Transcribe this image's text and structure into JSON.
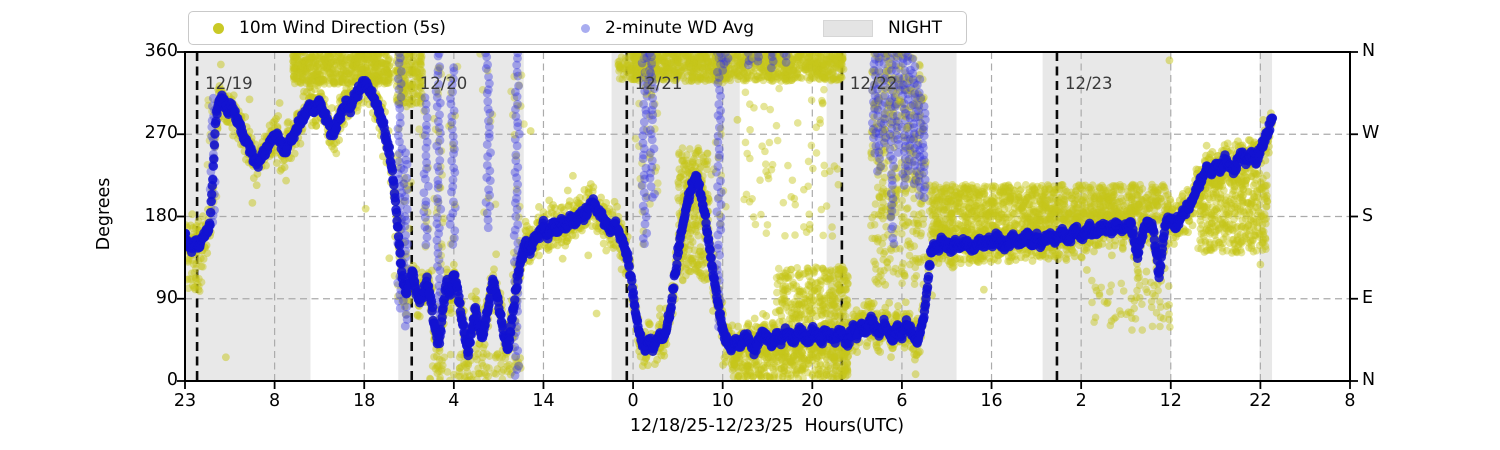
{
  "colors": {
    "yellow": "#c6c61a",
    "blue": "#1212d2",
    "blue_faint": "#3a3ae0",
    "legend_yellow": "#c9c926",
    "legend_blue": "#a9adf0",
    "night": "#e8e8e8",
    "night_patch": "#e4e4e4",
    "grid": "#ababab",
    "date_line": "#0a0a0a",
    "date_text": "#3a3a3a",
    "spine": "#000000"
  },
  "chart_data": {
    "type": "scatter",
    "title": "",
    "xlabel": "12/18/25-12/23/25  Hours(UTC)",
    "ylabel": "Degrees",
    "ylim": [
      0,
      360
    ],
    "x_hours_span": 130,
    "grid": "dashed, horizontal at 90/180/270 and vertical at each x tick",
    "legend_position": "top",
    "legend": [
      {
        "label": "10m Wind Direction (5s)",
        "marker": "dot"
      },
      {
        "label": "2-minute WD Avg",
        "marker": "dot"
      },
      {
        "label": "NIGHT",
        "marker": "patch"
      }
    ],
    "yticks": [
      {
        "deg": 0,
        "left": "0",
        "right": "N"
      },
      {
        "deg": 90,
        "left": "90",
        "right": "E"
      },
      {
        "deg": 180,
        "left": "180",
        "right": "S"
      },
      {
        "deg": 270,
        "left": "270",
        "right": "W"
      },
      {
        "deg": 360,
        "left": "360",
        "right": "N"
      }
    ],
    "xticks": [
      {
        "h": 0,
        "label": "23"
      },
      {
        "h": 10,
        "label": "8"
      },
      {
        "h": 20,
        "label": "18"
      },
      {
        "h": 30,
        "label": "4"
      },
      {
        "h": 40,
        "label": "14"
      },
      {
        "h": 50,
        "label": "0"
      },
      {
        "h": 60,
        "label": "10"
      },
      {
        "h": 70,
        "label": "20"
      },
      {
        "h": 80,
        "label": "6"
      },
      {
        "h": 90,
        "label": "16"
      },
      {
        "h": 100,
        "label": "2"
      },
      {
        "h": 110,
        "label": "12"
      },
      {
        "h": 120,
        "label": "22"
      },
      {
        "h": 130,
        "label": "8"
      }
    ],
    "day_lines": [
      {
        "h": 1.35,
        "label": "12/19"
      },
      {
        "h": 25.3,
        "label": "12/20"
      },
      {
        "h": 49.3,
        "label": "12/21"
      },
      {
        "h": 73.3,
        "label": "12/22"
      },
      {
        "h": 97.3,
        "label": "12/23"
      }
    ],
    "night_bands_hours": [
      [
        0,
        14
      ],
      [
        23.8,
        37.8
      ],
      [
        47.6,
        61.9
      ],
      [
        71.6,
        86.1
      ],
      [
        95.7,
        110
      ],
      [
        119.9,
        121.3
      ]
    ],
    "avg_series": [
      [
        0,
        160
      ],
      [
        0.4,
        150
      ],
      [
        0.8,
        146
      ],
      [
        1.2,
        154
      ],
      [
        1.6,
        150
      ],
      [
        2,
        158
      ],
      [
        2.4,
        164
      ],
      [
        2.8,
        174
      ],
      [
        3.1,
        220
      ],
      [
        3.4,
        285
      ],
      [
        3.7,
        300
      ],
      [
        4,
        310
      ],
      [
        4.4,
        306
      ],
      [
        4.8,
        296
      ],
      [
        5.2,
        301
      ],
      [
        5.6,
        291
      ],
      [
        6,
        281
      ],
      [
        6.4,
        271
      ],
      [
        6.8,
        262
      ],
      [
        7.2,
        255
      ],
      [
        7.6,
        246
      ],
      [
        8,
        238
      ],
      [
        8.4,
        242
      ],
      [
        8.8,
        250
      ],
      [
        9.2,
        256
      ],
      [
        9.6,
        263
      ],
      [
        10,
        270
      ],
      [
        10.4,
        265
      ],
      [
        10.8,
        258
      ],
      [
        11.2,
        252
      ],
      [
        11.6,
        260
      ],
      [
        12,
        268
      ],
      [
        12.4,
        275
      ],
      [
        12.8,
        282
      ],
      [
        13.2,
        290
      ],
      [
        13.6,
        296
      ],
      [
        14,
        302
      ],
      [
        14.4,
        297
      ],
      [
        14.8,
        305
      ],
      [
        15.2,
        300
      ],
      [
        15.6,
        291
      ],
      [
        16,
        280
      ],
      [
        16.4,
        267
      ],
      [
        16.8,
        275
      ],
      [
        17.2,
        288
      ],
      [
        17.6,
        297
      ],
      [
        18,
        305
      ],
      [
        18.4,
        297
      ],
      [
        18.8,
        308
      ],
      [
        19.2,
        315
      ],
      [
        19.6,
        322
      ],
      [
        20,
        328
      ],
      [
        20.4,
        322
      ],
      [
        20.8,
        314
      ],
      [
        21.2,
        307
      ],
      [
        21.6,
        297
      ],
      [
        22,
        285
      ],
      [
        22.4,
        268
      ],
      [
        22.8,
        250
      ],
      [
        23.2,
        224
      ],
      [
        23.6,
        185
      ],
      [
        24,
        140
      ],
      [
        24.3,
        112
      ],
      [
        24.6,
        96
      ],
      [
        25,
        106
      ],
      [
        25.4,
        120
      ],
      [
        25.8,
        100
      ],
      [
        26.2,
        88
      ],
      [
        26.6,
        96
      ],
      [
        27,
        108
      ],
      [
        27.4,
        92
      ],
      [
        27.8,
        62
      ],
      [
        28.1,
        48
      ],
      [
        28.4,
        42
      ],
      [
        28.8,
        78
      ],
      [
        29.2,
        108
      ],
      [
        29.6,
        92
      ],
      [
        30,
        118
      ],
      [
        30.4,
        100
      ],
      [
        30.8,
        72
      ],
      [
        31.2,
        52
      ],
      [
        31.6,
        32
      ],
      [
        32,
        56
      ],
      [
        32.4,
        78
      ],
      [
        32.8,
        60
      ],
      [
        33.2,
        46
      ],
      [
        33.6,
        68
      ],
      [
        34,
        90
      ],
      [
        34.4,
        108
      ],
      [
        34.8,
        94
      ],
      [
        35.2,
        74
      ],
      [
        35.6,
        52
      ],
      [
        36,
        34
      ],
      [
        36.4,
        60
      ],
      [
        36.8,
        92
      ],
      [
        37.2,
        118
      ],
      [
        37.6,
        136
      ],
      [
        38,
        150
      ],
      [
        38.5,
        144
      ],
      [
        39,
        154
      ],
      [
        39.5,
        160
      ],
      [
        40,
        170
      ],
      [
        40.5,
        160
      ],
      [
        41,
        172
      ],
      [
        41.5,
        164
      ],
      [
        42,
        174
      ],
      [
        42.5,
        168
      ],
      [
        43,
        178
      ],
      [
        43.5,
        172
      ],
      [
        44,
        182
      ],
      [
        44.5,
        180
      ],
      [
        45,
        188
      ],
      [
        45.5,
        195
      ],
      [
        46,
        188
      ],
      [
        46.5,
        180
      ],
      [
        47,
        171
      ],
      [
        47.5,
        165
      ],
      [
        48,
        171
      ],
      [
        48.5,
        160
      ],
      [
        49,
        148
      ],
      [
        49.4,
        134
      ],
      [
        49.8,
        110
      ],
      [
        50.2,
        80
      ],
      [
        50.6,
        56
      ],
      [
        51,
        42
      ],
      [
        51.4,
        36
      ],
      [
        51.8,
        46
      ],
      [
        52.2,
        36
      ],
      [
        52.6,
        41
      ],
      [
        53,
        50
      ],
      [
        53.4,
        46
      ],
      [
        53.8,
        60
      ],
      [
        54.2,
        80
      ],
      [
        54.6,
        110
      ],
      [
        55,
        140
      ],
      [
        55.4,
        164
      ],
      [
        55.8,
        184
      ],
      [
        56.2,
        200
      ],
      [
        56.6,
        214
      ],
      [
        57,
        225
      ],
      [
        57.4,
        210
      ],
      [
        57.8,
        190
      ],
      [
        58.2,
        170
      ],
      [
        58.6,
        140
      ],
      [
        59,
        115
      ],
      [
        59.4,
        90
      ],
      [
        59.8,
        66
      ],
      [
        60.2,
        50
      ],
      [
        60.6,
        41
      ],
      [
        61,
        35
      ],
      [
        61.5,
        44
      ],
      [
        62,
        38
      ],
      [
        62.5,
        48
      ],
      [
        63,
        44
      ],
      [
        63.5,
        34
      ],
      [
        64,
        44
      ],
      [
        64.5,
        54
      ],
      [
        65,
        46
      ],
      [
        65.5,
        39
      ],
      [
        66,
        50
      ],
      [
        66.5,
        44
      ],
      [
        67,
        54
      ],
      [
        67.5,
        49
      ],
      [
        68,
        44
      ],
      [
        68.5,
        54
      ],
      [
        69,
        50
      ],
      [
        69.5,
        44
      ],
      [
        70,
        55
      ],
      [
        70.5,
        49
      ],
      [
        71,
        44
      ],
      [
        71.5,
        55
      ],
      [
        72,
        50
      ],
      [
        72.5,
        44
      ],
      [
        73,
        54
      ],
      [
        73.5,
        48
      ],
      [
        74,
        43
      ],
      [
        74.5,
        58
      ],
      [
        75,
        50
      ],
      [
        75.5,
        63
      ],
      [
        76,
        54
      ],
      [
        76.5,
        68
      ],
      [
        77,
        58
      ],
      [
        77.5,
        50
      ],
      [
        78,
        64
      ],
      [
        78.5,
        54
      ],
      [
        79,
        46
      ],
      [
        79.5,
        60
      ],
      [
        80,
        50
      ],
      [
        80.5,
        64
      ],
      [
        81,
        54
      ],
      [
        81.6,
        42
      ],
      [
        82,
        52
      ],
      [
        82.4,
        68
      ],
      [
        82.8,
        98
      ],
      [
        83.2,
        138
      ],
      [
        83.6,
        150
      ],
      [
        84,
        146
      ],
      [
        84.5,
        154
      ],
      [
        85,
        149
      ],
      [
        85.5,
        143
      ],
      [
        86,
        152
      ],
      [
        86.5,
        148
      ],
      [
        87,
        154
      ],
      [
        87.5,
        149
      ],
      [
        88,
        145
      ],
      [
        88.5,
        152
      ],
      [
        89,
        148
      ],
      [
        89.5,
        154
      ],
      [
        90,
        150
      ],
      [
        90.5,
        157
      ],
      [
        91,
        151
      ],
      [
        91.5,
        146
      ],
      [
        92,
        153
      ],
      [
        92.5,
        158
      ],
      [
        93,
        150
      ],
      [
        93.5,
        155
      ],
      [
        94,
        160
      ],
      [
        94.5,
        152
      ],
      [
        95,
        157
      ],
      [
        95.5,
        150
      ],
      [
        96,
        155
      ],
      [
        96.5,
        160
      ],
      [
        97,
        152
      ],
      [
        97.5,
        158
      ],
      [
        98,
        163
      ],
      [
        98.5,
        155
      ],
      [
        99,
        160
      ],
      [
        99.5,
        165
      ],
      [
        100,
        157
      ],
      [
        100.5,
        162
      ],
      [
        101,
        167
      ],
      [
        101.5,
        159
      ],
      [
        102,
        165
      ],
      [
        102.5,
        170
      ],
      [
        103,
        162
      ],
      [
        103.5,
        167
      ],
      [
        104,
        172
      ],
      [
        104.5,
        164
      ],
      [
        105,
        170
      ],
      [
        105.5,
        174
      ],
      [
        106,
        150
      ],
      [
        106.3,
        132
      ],
      [
        106.6,
        152
      ],
      [
        107,
        168
      ],
      [
        107.5,
        173
      ],
      [
        108,
        166
      ],
      [
        108.4,
        140
      ],
      [
        108.7,
        112
      ],
      [
        109,
        140
      ],
      [
        109.4,
        172
      ],
      [
        110,
        177
      ],
      [
        110.5,
        171
      ],
      [
        111,
        178
      ],
      [
        111.5,
        184
      ],
      [
        112,
        190
      ],
      [
        112.5,
        200
      ],
      [
        113,
        212
      ],
      [
        113.5,
        222
      ],
      [
        114,
        232
      ],
      [
        114.5,
        226
      ],
      [
        115,
        238
      ],
      [
        115.5,
        231
      ],
      [
        116,
        242
      ],
      [
        116.5,
        235
      ],
      [
        117,
        229
      ],
      [
        117.5,
        241
      ],
      [
        118,
        248
      ],
      [
        118.5,
        239
      ],
      [
        119,
        249
      ],
      [
        119.5,
        243
      ],
      [
        120,
        252
      ],
      [
        120.4,
        262
      ],
      [
        120.8,
        272
      ],
      [
        121.1,
        282
      ],
      [
        121.4,
        291
      ]
    ],
    "wrap_streaks": [
      [
        3.1,
        175,
        310
      ],
      [
        24.0,
        80,
        360
      ],
      [
        24.6,
        60,
        250
      ],
      [
        26.9,
        150,
        310
      ],
      [
        28.3,
        50,
        360
      ],
      [
        29.9,
        150,
        345
      ],
      [
        33.8,
        170,
        360
      ],
      [
        37.0,
        5,
        360
      ],
      [
        51.3,
        150,
        360
      ],
      [
        51.8,
        320,
        360
      ],
      [
        52.1,
        200,
        360
      ],
      [
        59.6,
        60,
        360
      ],
      [
        59.9,
        340,
        360
      ],
      [
        60.5,
        350,
        360
      ],
      [
        63,
        345,
        360
      ],
      [
        64,
        350,
        360
      ],
      [
        65.5,
        342,
        360
      ],
      [
        67,
        350,
        360
      ],
      [
        76.9,
        250,
        360
      ],
      [
        77.4,
        230,
        360
      ],
      [
        78.1,
        260,
        360
      ],
      [
        78.9,
        150,
        360
      ],
      [
        79.5,
        250,
        360
      ],
      [
        80.2,
        215,
        360
      ],
      [
        80.8,
        230,
        355
      ],
      [
        81.4,
        215,
        350
      ],
      [
        82.0,
        205,
        330
      ],
      [
        82.5,
        200,
        300
      ]
    ],
    "yellow_patches": [
      [
        0.3,
        2,
        95,
        150,
        40
      ],
      [
        12,
        23,
        325,
        360,
        500
      ],
      [
        23.5,
        26.5,
        300,
        360,
        150
      ],
      [
        48.3,
        73.5,
        328,
        360,
        950
      ],
      [
        55,
        58.5,
        110,
        255,
        250
      ],
      [
        61,
        74,
        2,
        40,
        350
      ],
      [
        62,
        73,
        150,
        320,
        70
      ],
      [
        66,
        74,
        70,
        125,
        250
      ],
      [
        76.5,
        82.5,
        100,
        360,
        280
      ],
      [
        83,
        96,
        160,
        215,
        550
      ],
      [
        96,
        110,
        175,
        215,
        420
      ],
      [
        101,
        110,
        55,
        110,
        60
      ],
      [
        113,
        120.8,
        140,
        225,
        380
      ],
      [
        27,
        37.5,
        0,
        30,
        90
      ]
    ]
  }
}
